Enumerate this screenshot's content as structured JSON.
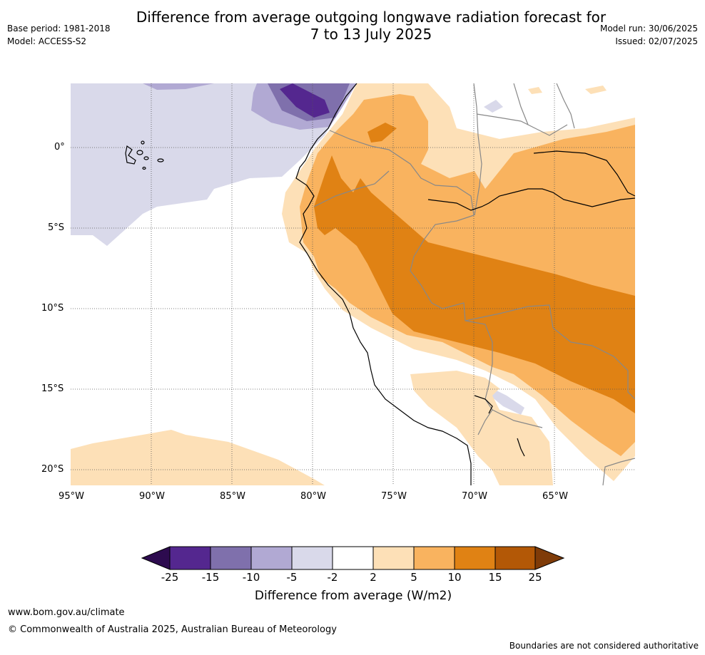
{
  "header": {
    "title_line1": "Difference from average outgoing longwave radiation forecast for",
    "title_line2": "7 to 13 July 2025",
    "base_period": "Base period: 1981-2018",
    "model": "Model: ACCESS-S2",
    "model_run": "Model run: 30/06/2025",
    "issued": "Issued: 02/07/2025"
  },
  "map": {
    "lat_labels": [
      "0°",
      "5°S",
      "10°S",
      "15°S",
      "20°S"
    ],
    "lon_labels": [
      "95°W",
      "90°W",
      "85°W",
      "80°W",
      "75°W",
      "70°W",
      "65°W"
    ]
  },
  "colorbar": {
    "colors": [
      "#2d0b4f",
      "#54278f",
      "#7f70ac",
      "#b1a9d3",
      "#d9d9ea",
      "#ffffff",
      "#fde0b7",
      "#f9b35f",
      "#e08214",
      "#b35806",
      "#7f3b08"
    ],
    "labels": [
      "-25",
      "-15",
      "-10",
      "-5",
      "-2",
      "2",
      "5",
      "10",
      "15",
      "25"
    ],
    "title": "Difference from average (W/m2)"
  },
  "footer": {
    "website": "www.bom.gov.au/climate",
    "copyright": "© Commonwealth of Australia 2025, Australian Bureau of Meteorology",
    "disclaimer": "Boundaries are not considered authoritative"
  }
}
